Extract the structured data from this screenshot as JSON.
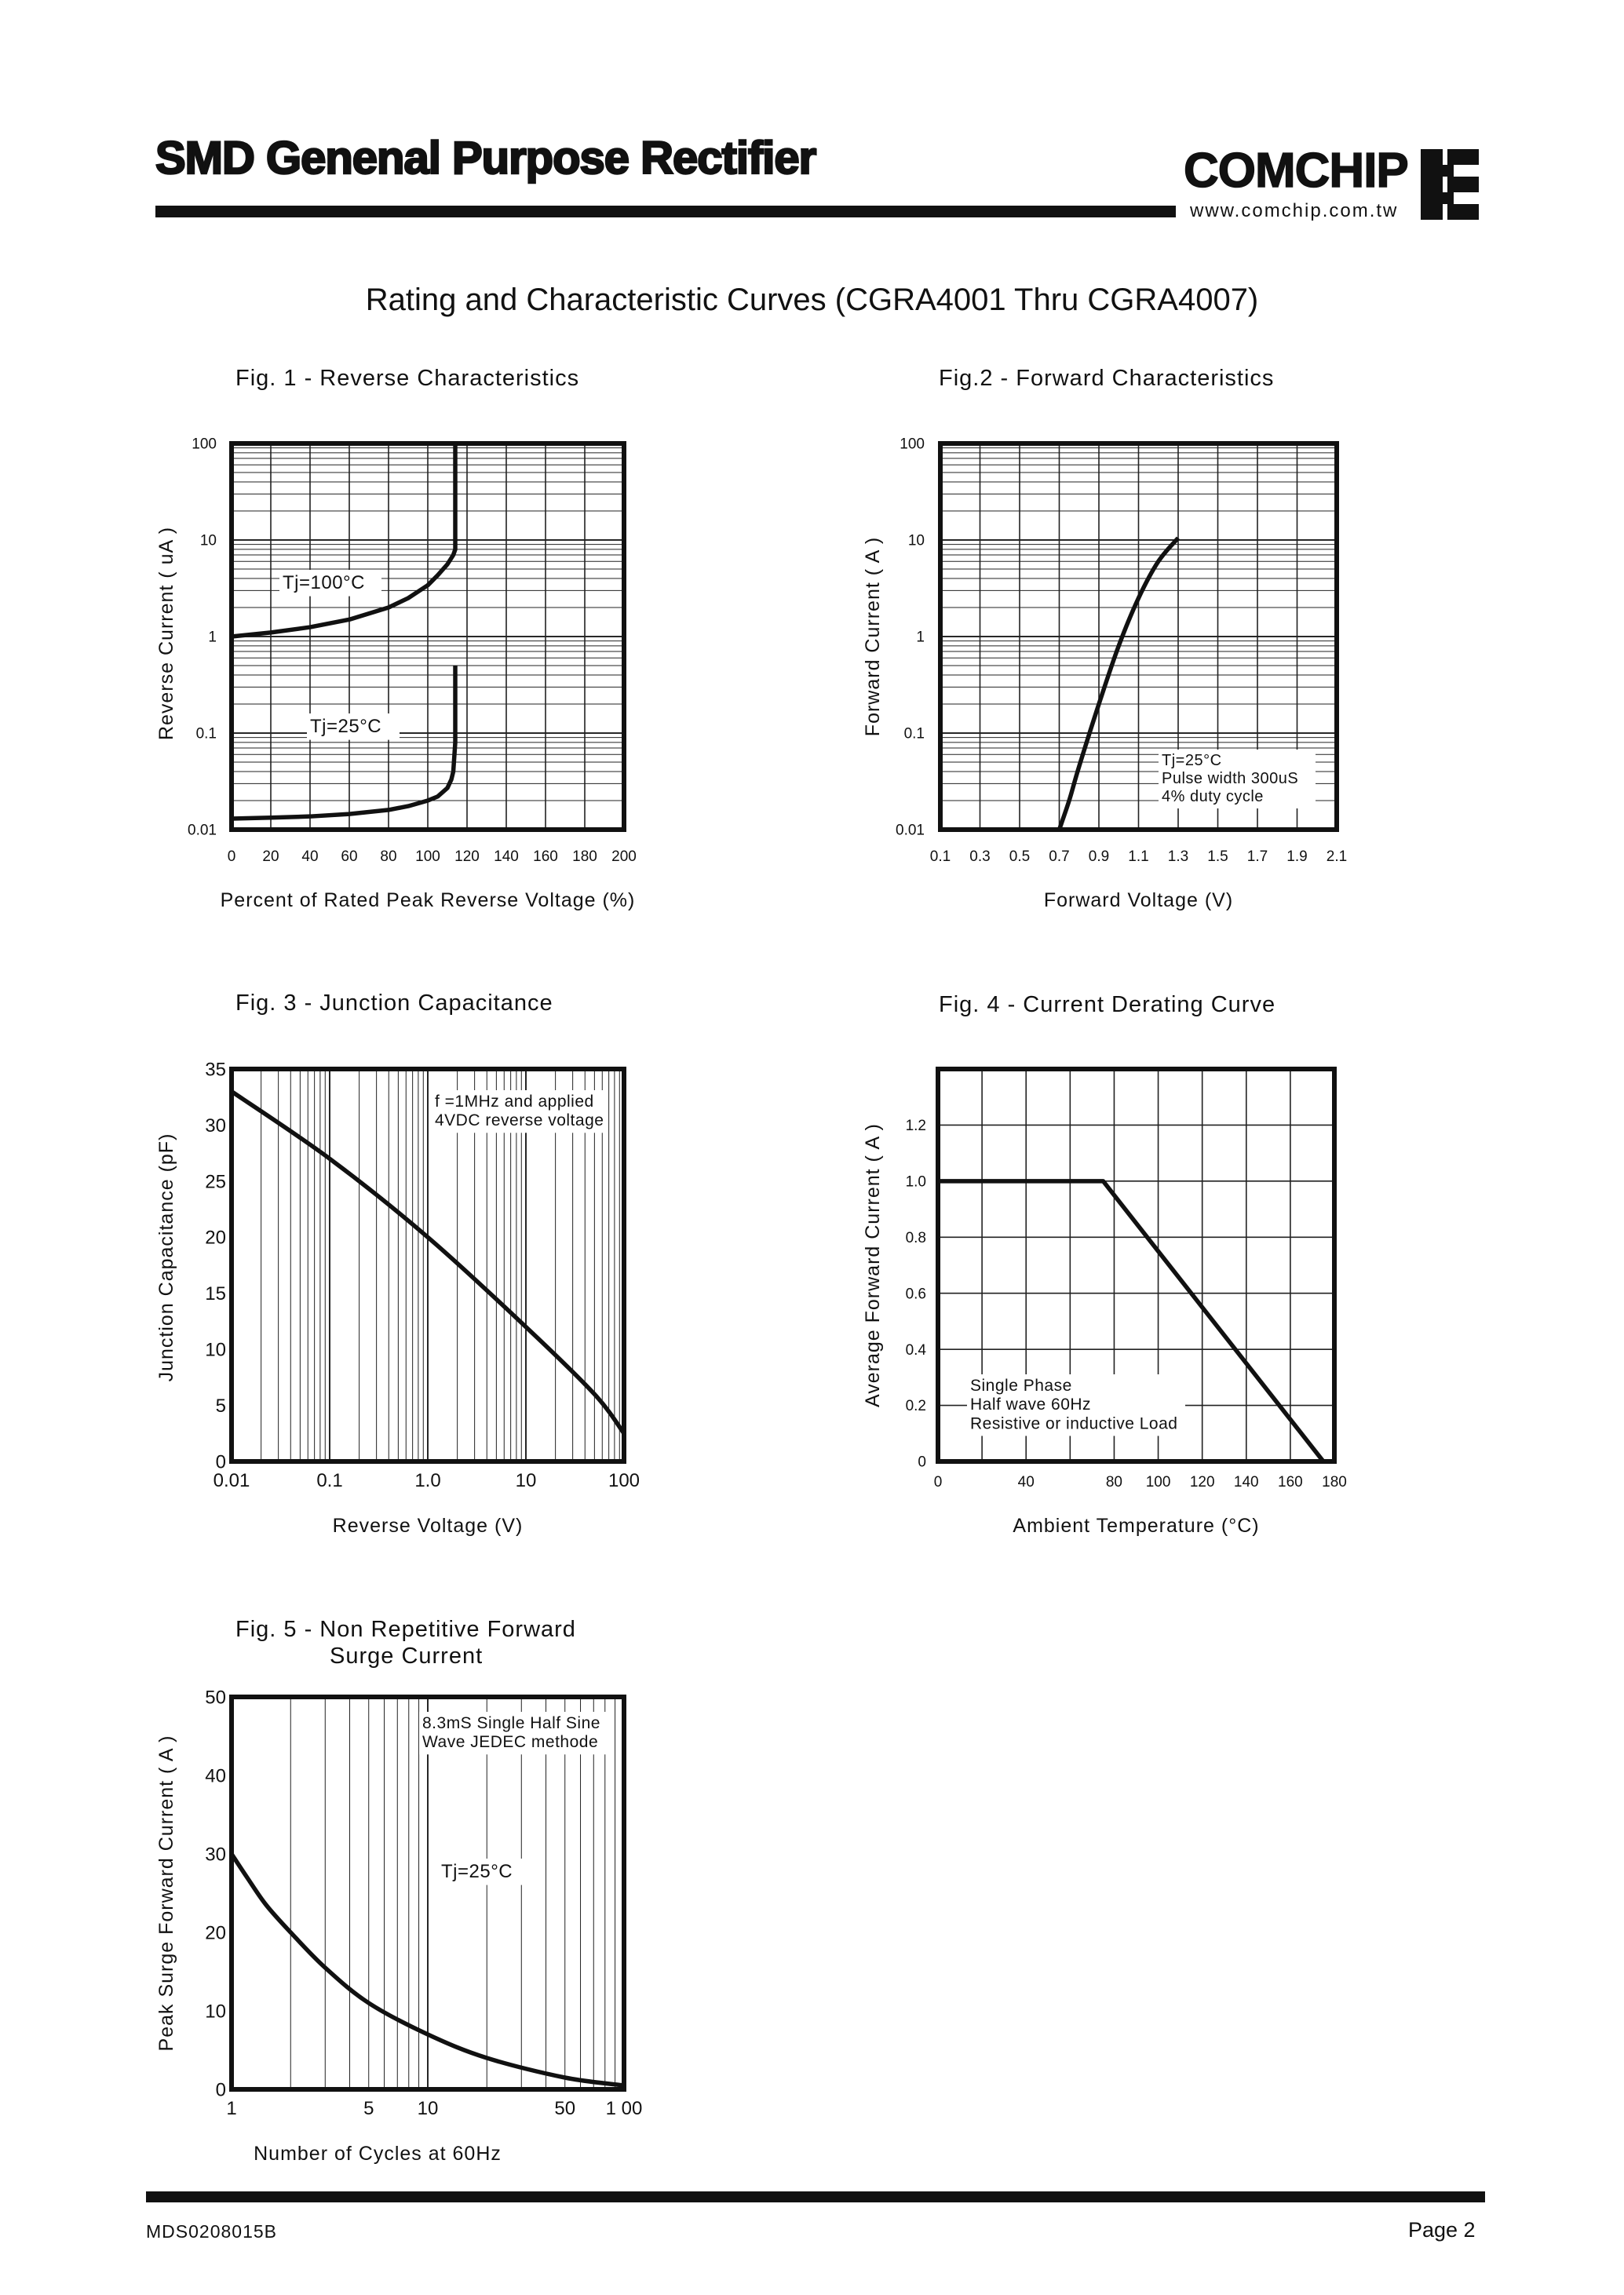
{
  "header": {
    "title": "SMD Genenal Purpose Rectifier",
    "brand": "COMCHIP",
    "url": "www.comchip.com.tw"
  },
  "heading": "Rating and Characteristic Curves (CGRA4001 Thru CGRA4007)",
  "figures": [
    {
      "title": "Fig. 1 -  Reverse Characteristics"
    },
    {
      "title": "Fig.2 -  Forward Characteristics"
    },
    {
      "title": "Fig. 3 -  Junction Capacitance"
    },
    {
      "title": "Fig. 4 - Current Derating Curve"
    },
    {
      "title_line1": "Fig. 5 -  Non Repetitive Forward",
      "title_line2": "Surge Current"
    }
  ],
  "chart_data": [
    {
      "type": "line",
      "title": "Fig. 1 -  Reverse Characteristics",
      "xlabel": "Percent of Rated Peak Reverse Voltage (%)",
      "ylabel": "Reverse Current ( uA )",
      "x_ticks": [
        "0",
        "20",
        "40",
        "60",
        "80",
        "100",
        "120",
        "140",
        "160",
        "180",
        "200"
      ],
      "y_ticks": [
        "100",
        "10",
        "1",
        "0.1",
        "0.01"
      ],
      "xlim": [
        0,
        200
      ],
      "ylim": [
        0.01,
        100
      ],
      "y_scale": "log",
      "grid": true,
      "annotations": [
        "Tj=100°C",
        "Tj=25°C"
      ],
      "series": [
        {
          "name": "Tj=100°C",
          "x": [
            0,
            20,
            40,
            60,
            80,
            90,
            100,
            105,
            110,
            113,
            114,
            114,
            114
          ],
          "y": [
            1.0,
            1.1,
            1.25,
            1.5,
            2.0,
            2.5,
            3.4,
            4.3,
            5.6,
            7.0,
            8.0,
            30,
            100
          ]
        },
        {
          "name": "Tj=25°C",
          "x": [
            0,
            20,
            40,
            60,
            80,
            90,
            100,
            105,
            110,
            112,
            113,
            114,
            114
          ],
          "y": [
            0.013,
            0.0133,
            0.0137,
            0.0145,
            0.016,
            0.0175,
            0.02,
            0.022,
            0.027,
            0.033,
            0.04,
            0.08,
            0.5
          ]
        }
      ]
    },
    {
      "type": "line",
      "title": "Fig.2 -  Forward Characteristics",
      "xlabel": "Forward Voltage (V)",
      "ylabel": "Forward Current ( A )",
      "x_ticks": [
        "0.1",
        "0.3",
        "0.5",
        "0.7",
        "0.9",
        "1.1",
        "1.3",
        "1.5",
        "1.7",
        "1.9",
        "2.1"
      ],
      "y_ticks": [
        "100",
        "10",
        "1",
        "0.1",
        "0.01"
      ],
      "xlim": [
        0.1,
        2.1
      ],
      "ylim": [
        0.01,
        100
      ],
      "y_scale": "log",
      "grid": true,
      "annotations": [
        "Tj=25°C",
        "Pulse width 300uS",
        "4% duty cycle"
      ],
      "series": [
        {
          "name": "",
          "x": [
            0.7,
            0.75,
            0.8,
            0.9,
            1.0,
            1.1,
            1.2,
            1.3
          ],
          "y": [
            0.01,
            0.02,
            0.045,
            0.2,
            0.8,
            2.5,
            6.0,
            10.5
          ]
        }
      ]
    },
    {
      "type": "line",
      "title": "Fig. 3 -  Junction Capacitance",
      "xlabel": "Reverse Voltage (V)",
      "ylabel": "Junction Capacitance  (pF)",
      "x_ticks": [
        "0.01",
        "0.1",
        "1.0",
        "10",
        "100"
      ],
      "y_ticks": [
        "35",
        "30",
        "25",
        "20",
        "15",
        "10",
        "5",
        "0"
      ],
      "xlim": [
        0.01,
        100
      ],
      "x_scale": "log",
      "ylim": [
        0,
        35
      ],
      "grid": true,
      "annotations": [
        "f =1MHz and applied",
        "4VDC reverse voltage"
      ],
      "series": [
        {
          "name": "",
          "x": [
            0.01,
            0.1,
            1,
            10,
            50,
            100
          ],
          "y": [
            33,
            27,
            20,
            12,
            6,
            2.5
          ]
        }
      ]
    },
    {
      "type": "line",
      "title": "Fig. 4 - Current Derating Curve",
      "xlabel": "Ambient Temperature (°C)",
      "ylabel": "Average Forward Current ( A )",
      "x_ticks": [
        "0",
        "40",
        "80",
        "100",
        "120",
        "140",
        "160",
        "180"
      ],
      "y_ticks": [
        "1.2",
        "1.0",
        "0.8",
        "0.6",
        "0.4",
        "0.2",
        "0"
      ],
      "xlim": [
        0,
        180
      ],
      "ylim": [
        0,
        1.4
      ],
      "grid": true,
      "annotations": [
        "Single Phase",
        "Half wave 60Hz",
        "Resistive or inductive Load"
      ],
      "series": [
        {
          "name": "",
          "x": [
            0,
            75,
            175
          ],
          "y": [
            1.0,
            1.0,
            0
          ]
        }
      ]
    },
    {
      "type": "line",
      "title": "Fig. 5 -  Non Repetitive Forward Surge Current",
      "xlabel": "Number of Cycles at 60Hz",
      "ylabel": "Peak Surge Forward Current ( A )",
      "x_ticks": [
        "1",
        "5",
        "10",
        "50",
        "1 00"
      ],
      "y_ticks": [
        "50",
        "40",
        "30",
        "20",
        "10",
        "0"
      ],
      "xlim": [
        1,
        100
      ],
      "x_scale": "log",
      "ylim": [
        0,
        50
      ],
      "grid": true,
      "annotations": [
        "8.3mS Single Half Sine",
        "Wave JEDEC methode",
        "Tj=25°C"
      ],
      "series": [
        {
          "name": "",
          "x": [
            1,
            1.2,
            1.5,
            2,
            3,
            5,
            10,
            20,
            50,
            100
          ],
          "y": [
            30,
            27,
            23.5,
            20,
            15.5,
            11,
            7,
            4,
            1.5,
            0.5
          ]
        }
      ]
    }
  ],
  "footer": {
    "code": "MDS0208015B",
    "page": "Page 2"
  }
}
